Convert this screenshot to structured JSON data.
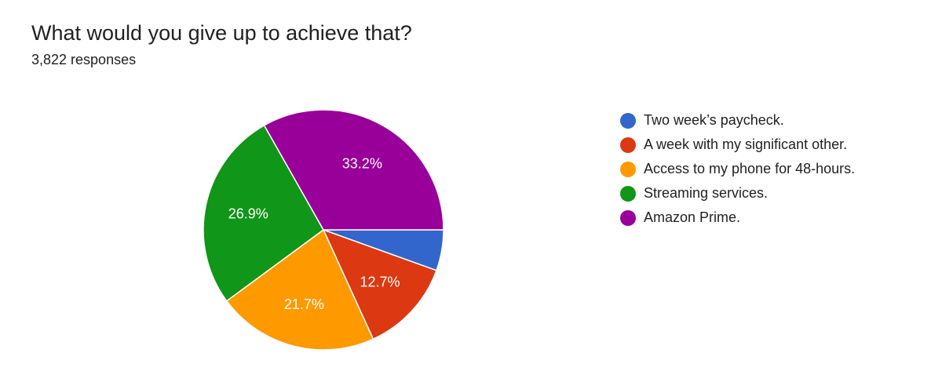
{
  "question": {
    "title": "What would you give up to achieve that?",
    "responses": "3,822 responses"
  },
  "chart_data": {
    "type": "pie",
    "legend_position": "right",
    "slices": [
      {
        "label": "Two week’s paycheck.",
        "value": 5.5,
        "display": "",
        "color": "#3366cc"
      },
      {
        "label": "A week with my significant other.",
        "value": 12.7,
        "display": "12.7%",
        "color": "#dc3912"
      },
      {
        "label": "Access to my phone for 48-hours.",
        "value": 21.7,
        "display": "21.7%",
        "color": "#ff9900"
      },
      {
        "label": "Streaming services.",
        "value": 26.9,
        "display": "26.9%",
        "color": "#109618"
      },
      {
        "label": "Amazon Prime.",
        "value": 33.2,
        "display": "33.2%",
        "color": "#990099"
      }
    ]
  }
}
